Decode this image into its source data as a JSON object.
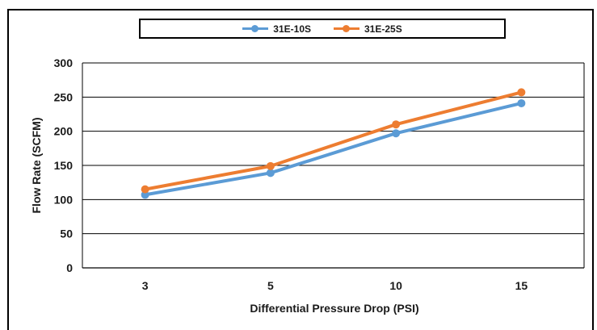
{
  "chart_data": {
    "type": "line",
    "title": "",
    "xlabel": "Differential Pressure Drop (PSI)",
    "ylabel": "Flow Rate (SCFM)",
    "categories": [
      "3",
      "5",
      "10",
      "15"
    ],
    "ylim": [
      0,
      300
    ],
    "yticks": [
      "0",
      "50",
      "100",
      "150",
      "200",
      "250",
      "300"
    ],
    "grid": true,
    "legend_position": "top",
    "series": [
      {
        "name": "31E-10S",
        "color": "#5b9bd5",
        "values": [
          107,
          139,
          197,
          241
        ]
      },
      {
        "name": "31E-25S",
        "color": "#ed7d31",
        "values": [
          115,
          149,
          210,
          257
        ]
      }
    ]
  }
}
